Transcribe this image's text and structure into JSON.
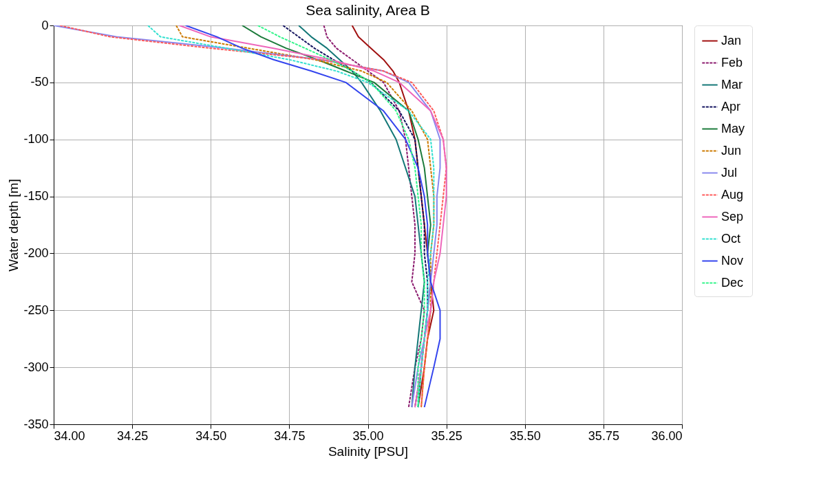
{
  "chart_data": {
    "type": "line",
    "title": "Sea salinity, Area B",
    "xlabel": "Salinity [PSU]",
    "ylabel": "Water depth [m]",
    "xlim": [
      34.0,
      36.0
    ],
    "xticks": [
      {
        "value": 34,
        "label": "34.00"
      },
      {
        "value": 34.25,
        "label": "34.25"
      },
      {
        "value": 34.5,
        "label": "34.50"
      },
      {
        "value": 34.75,
        "label": "34.75"
      },
      {
        "value": 35,
        "label": "35.00"
      },
      {
        "value": 35.25,
        "label": "35.25"
      },
      {
        "value": 35.5,
        "label": "35.50"
      },
      {
        "value": 35.75,
        "label": "35.75"
      },
      {
        "value": 36,
        "label": "36.00"
      }
    ],
    "ylim": [
      -350,
      0
    ],
    "yticks": [
      -350,
      -300,
      -250,
      -200,
      -150,
      -100,
      -50,
      0
    ],
    "grid": true,
    "legend": "right",
    "series": [
      {
        "name": "Jan",
        "color": "#a01010",
        "line_style": "solid",
        "x": [
          34.95,
          34.97,
          35.01,
          35.05,
          35.08,
          35.1,
          35.13,
          35.15,
          35.16,
          35.17,
          35.18,
          35.19,
          35.2,
          35.21,
          35.19,
          35.18,
          35.16
        ],
        "values": [
          0,
          -10,
          -20,
          -30,
          -40,
          -50,
          -75,
          -100,
          -125,
          -150,
          -175,
          -200,
          -225,
          -250,
          -275,
          -300,
          -335
        ]
      },
      {
        "name": "Feb",
        "color": "#8b1a6e",
        "line_style": "dashed",
        "x": [
          34.86,
          34.87,
          34.9,
          34.95,
          35.0,
          35.05,
          35.1,
          35.12,
          35.13,
          35.14,
          35.15,
          35.15,
          35.14,
          35.18,
          35.17,
          35.15,
          35.13
        ],
        "values": [
          0,
          -10,
          -20,
          -30,
          -40,
          -50,
          -75,
          -100,
          -125,
          -150,
          -175,
          -200,
          -225,
          -250,
          -275,
          -300,
          -335
        ]
      },
      {
        "name": "Mar",
        "color": "#137777",
        "line_style": "solid",
        "x": [
          34.78,
          34.82,
          34.87,
          34.91,
          34.95,
          34.98,
          35.04,
          35.09,
          35.12,
          35.15,
          35.16,
          35.17,
          35.18,
          35.17,
          35.16,
          35.15,
          35.14
        ],
        "values": [
          0,
          -10,
          -20,
          -30,
          -40,
          -50,
          -75,
          -100,
          -125,
          -150,
          -175,
          -200,
          -225,
          -250,
          -275,
          -300,
          -335
        ]
      },
      {
        "name": "Apr",
        "color": "#12125e",
        "line_style": "dashed",
        "x": [
          34.73,
          34.78,
          34.83,
          34.89,
          34.95,
          35.01,
          35.1,
          35.15,
          35.16,
          35.17,
          35.18,
          35.18,
          35.19,
          35.19,
          35.18,
          35.17,
          35.15
        ],
        "values": [
          0,
          -10,
          -20,
          -30,
          -40,
          -50,
          -75,
          -100,
          -125,
          -150,
          -175,
          -200,
          -225,
          -250,
          -275,
          -300,
          -335
        ]
      },
      {
        "name": "May",
        "color": "#1b7a3a",
        "line_style": "solid",
        "x": [
          34.6,
          34.66,
          34.74,
          34.84,
          34.93,
          35.02,
          35.13,
          35.16,
          35.18,
          35.19,
          35.2,
          35.19,
          35.2,
          35.19,
          35.18,
          35.17,
          35.16
        ],
        "values": [
          0,
          -10,
          -20,
          -30,
          -40,
          -50,
          -75,
          -100,
          -125,
          -150,
          -175,
          -200,
          -225,
          -250,
          -275,
          -300,
          -335
        ]
      },
      {
        "name": "Jun",
        "color": "#cc7a00",
        "line_style": "dashed",
        "x": [
          34.39,
          34.41,
          34.62,
          34.83,
          34.98,
          35.06,
          35.14,
          35.19,
          35.2,
          35.21,
          35.21,
          35.2,
          35.2,
          35.2,
          35.19,
          35.18,
          35.17
        ],
        "values": [
          0,
          -10,
          -20,
          -30,
          -40,
          -50,
          -75,
          -100,
          -125,
          -150,
          -175,
          -200,
          -225,
          -250,
          -275,
          -300,
          -335
        ]
      },
      {
        "name": "Jul",
        "color": "#8888ee",
        "line_style": "solid",
        "x": [
          34.0,
          34.2,
          34.55,
          34.85,
          35.05,
          35.13,
          35.2,
          35.23,
          35.23,
          35.22,
          35.22,
          35.21,
          35.2,
          35.19,
          35.18,
          35.16,
          35.14
        ],
        "values": [
          0,
          -10,
          -20,
          -30,
          -40,
          -50,
          -75,
          -100,
          -125,
          -150,
          -175,
          -200,
          -225,
          -250,
          -275,
          -300,
          -335
        ]
      },
      {
        "name": "Aug",
        "color": "#ff5a5a",
        "line_style": "dashed",
        "x": [
          34.02,
          34.18,
          34.5,
          34.85,
          35.05,
          35.14,
          35.21,
          35.24,
          35.25,
          35.24,
          35.23,
          35.22,
          35.21,
          35.2,
          35.19,
          35.18,
          35.17
        ],
        "values": [
          0,
          -10,
          -20,
          -30,
          -40,
          -50,
          -75,
          -100,
          -125,
          -150,
          -175,
          -200,
          -225,
          -250,
          -275,
          -300,
          -335
        ]
      },
      {
        "name": "Sep",
        "color": "#ee66bb",
        "line_style": "solid",
        "x": [
          34.4,
          34.5,
          34.7,
          34.88,
          35.02,
          35.1,
          35.2,
          35.24,
          35.25,
          35.25,
          35.24,
          35.23,
          35.21,
          35.2,
          35.18,
          35.17,
          35.15
        ],
        "values": [
          0,
          -10,
          -20,
          -30,
          -40,
          -50,
          -75,
          -100,
          -125,
          -150,
          -175,
          -200,
          -225,
          -250,
          -275,
          -300,
          -335
        ]
      },
      {
        "name": "Oct",
        "color": "#33e0d0",
        "line_style": "dashed",
        "x": [
          34.3,
          34.34,
          34.55,
          34.75,
          34.9,
          35.0,
          35.13,
          35.2,
          35.21,
          35.21,
          35.21,
          35.2,
          35.19,
          35.19,
          35.18,
          35.17,
          35.16
        ],
        "values": [
          0,
          -10,
          -20,
          -30,
          -40,
          -50,
          -75,
          -100,
          -125,
          -150,
          -175,
          -200,
          -225,
          -250,
          -275,
          -300,
          -335
        ]
      },
      {
        "name": "Nov",
        "color": "#3344ee",
        "line_style": "solid",
        "x": [
          34.42,
          34.52,
          34.6,
          34.7,
          34.82,
          34.93,
          35.05,
          35.12,
          35.16,
          35.18,
          35.19,
          35.19,
          35.2,
          35.23,
          35.23,
          35.21,
          35.18
        ],
        "values": [
          0,
          -10,
          -20,
          -30,
          -40,
          -50,
          -75,
          -100,
          -125,
          -150,
          -175,
          -200,
          -225,
          -250,
          -275,
          -300,
          -335
        ]
      },
      {
        "name": "Dec",
        "color": "#33f58a",
        "line_style": "dashed",
        "x": [
          34.65,
          34.72,
          34.8,
          34.88,
          34.95,
          35.01,
          35.09,
          35.13,
          35.15,
          35.16,
          35.17,
          35.17,
          35.18,
          35.18,
          35.17,
          35.16,
          35.16
        ],
        "values": [
          0,
          -10,
          -20,
          -30,
          -40,
          -50,
          -75,
          -100,
          -125,
          -150,
          -175,
          -200,
          -225,
          -250,
          -275,
          -300,
          -335
        ]
      }
    ]
  }
}
